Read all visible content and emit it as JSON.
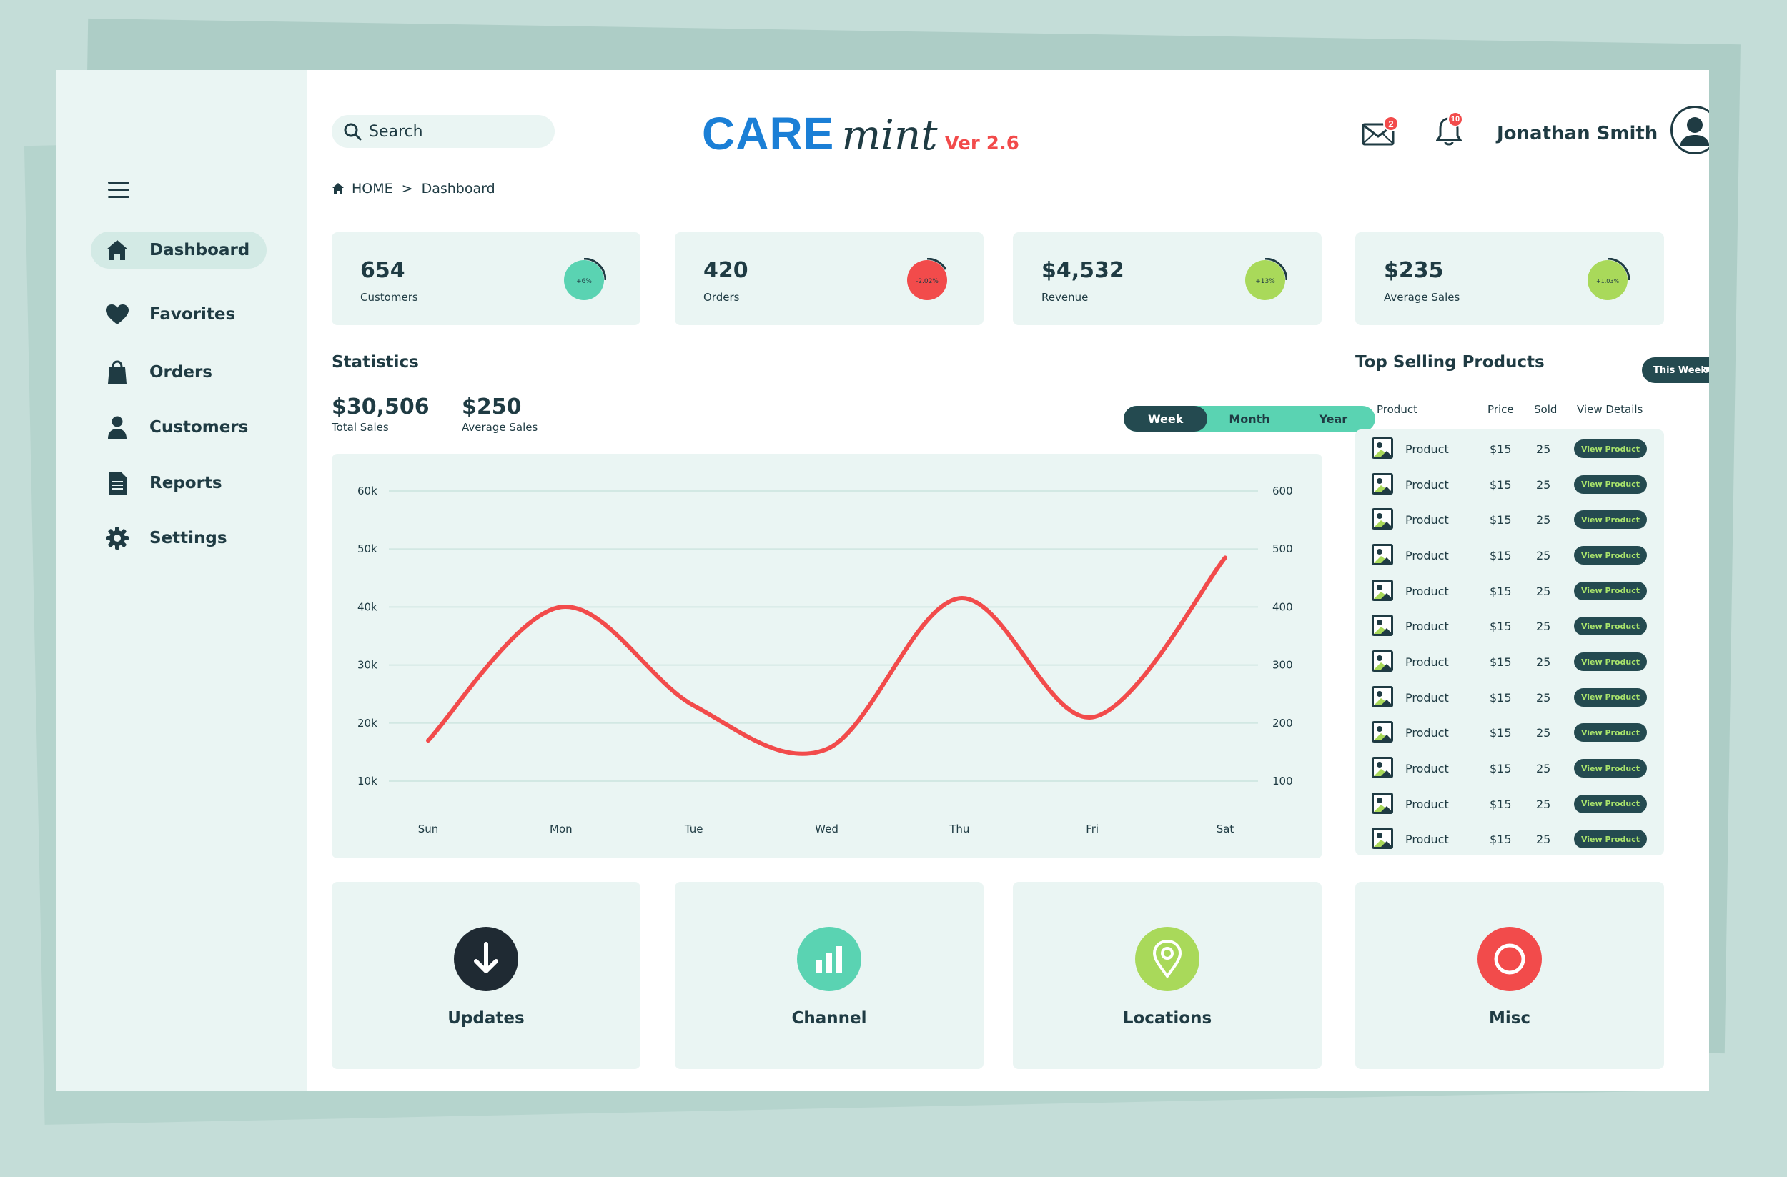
{
  "sidebar": {
    "items": [
      {
        "label": "Dashboard",
        "icon": "home-icon"
      },
      {
        "label": "Favorites",
        "icon": "heart-icon"
      },
      {
        "label": "Orders",
        "icon": "bag-icon"
      },
      {
        "label": "Customers",
        "icon": "user-icon"
      },
      {
        "label": "Reports",
        "icon": "document-icon"
      },
      {
        "label": "Settings",
        "icon": "gear-icon"
      }
    ]
  },
  "header": {
    "search_placeholder": "Search",
    "logo_care": "CARE",
    "logo_mint": "mint",
    "logo_version": "Ver 2.6",
    "mail_badge": "2",
    "bell_badge": "10",
    "user_name": "Jonathan Smith"
  },
  "breadcrumb": {
    "home": "HOME",
    "separator": ">",
    "current": "Dashboard"
  },
  "stats": [
    {
      "value": "654",
      "label": "Customers",
      "change": "+6%",
      "color": "#5ad3b2"
    },
    {
      "value": "420",
      "label": "Orders",
      "change": "-2.02%",
      "color": "#f24b4b"
    },
    {
      "value": "$4,532",
      "label": "Revenue",
      "change": "+13%",
      "color": "#a9d95a"
    },
    {
      "value": "$235",
      "label": "Average Sales",
      "change": "+1.03%",
      "color": "#a9d95a"
    }
  ],
  "statistics": {
    "title": "Statistics",
    "total_sales": "$30,506",
    "total_sales_label": "Total Sales",
    "avg_sales": "$250",
    "avg_sales_label": "Average Sales",
    "periods": [
      "Week",
      "Month",
      "Year"
    ],
    "selected_period": "Week"
  },
  "chart_data": {
    "type": "line",
    "x": [
      "Sun",
      "Mon",
      "Tue",
      "Wed",
      "Thu",
      "Fri",
      "Sat"
    ],
    "y_left_ticks": [
      "60k",
      "50k",
      "40k",
      "30k",
      "20k",
      "10k"
    ],
    "y_right_ticks": [
      "600",
      "500",
      "400",
      "300",
      "200",
      "100"
    ],
    "ylim": [
      10000,
      60000
    ],
    "series": [
      {
        "values": [
          17000,
          40000,
          23000,
          15500,
          41500,
          21000,
          48500
        ],
        "color": "#f24b4b"
      }
    ],
    "grid": true
  },
  "top_products": {
    "title": "Top Selling Products",
    "filter": "This Week",
    "columns": [
      "Product",
      "Price",
      "Sold",
      "View Details"
    ],
    "rows": [
      {
        "name": "Product",
        "price": "$15",
        "sold": "25",
        "action": "View Product"
      },
      {
        "name": "Product",
        "price": "$15",
        "sold": "25",
        "action": "View Product"
      },
      {
        "name": "Product",
        "price": "$15",
        "sold": "25",
        "action": "View Product"
      },
      {
        "name": "Product",
        "price": "$15",
        "sold": "25",
        "action": "View Product"
      },
      {
        "name": "Product",
        "price": "$15",
        "sold": "25",
        "action": "View Product"
      },
      {
        "name": "Product",
        "price": "$15",
        "sold": "25",
        "action": "View Product"
      },
      {
        "name": "Product",
        "price": "$15",
        "sold": "25",
        "action": "View Product"
      },
      {
        "name": "Product",
        "price": "$15",
        "sold": "25",
        "action": "View Product"
      },
      {
        "name": "Product",
        "price": "$15",
        "sold": "25",
        "action": "View Product"
      },
      {
        "name": "Product",
        "price": "$15",
        "sold": "25",
        "action": "View Product"
      },
      {
        "name": "Product",
        "price": "$15",
        "sold": "25",
        "action": "View Product"
      },
      {
        "name": "Product",
        "price": "$15",
        "sold": "25",
        "action": "View Product"
      }
    ]
  },
  "tiles": [
    {
      "label": "Updates",
      "icon": "download-icon",
      "color": "#1f2a33"
    },
    {
      "label": "Channel",
      "icon": "bar-chart-icon",
      "color": "#5ad3b2"
    },
    {
      "label": "Locations",
      "icon": "location-pin-icon",
      "color": "#a9d95a"
    },
    {
      "label": "Misc",
      "icon": "circle-icon",
      "color": "#f24b4b"
    }
  ]
}
